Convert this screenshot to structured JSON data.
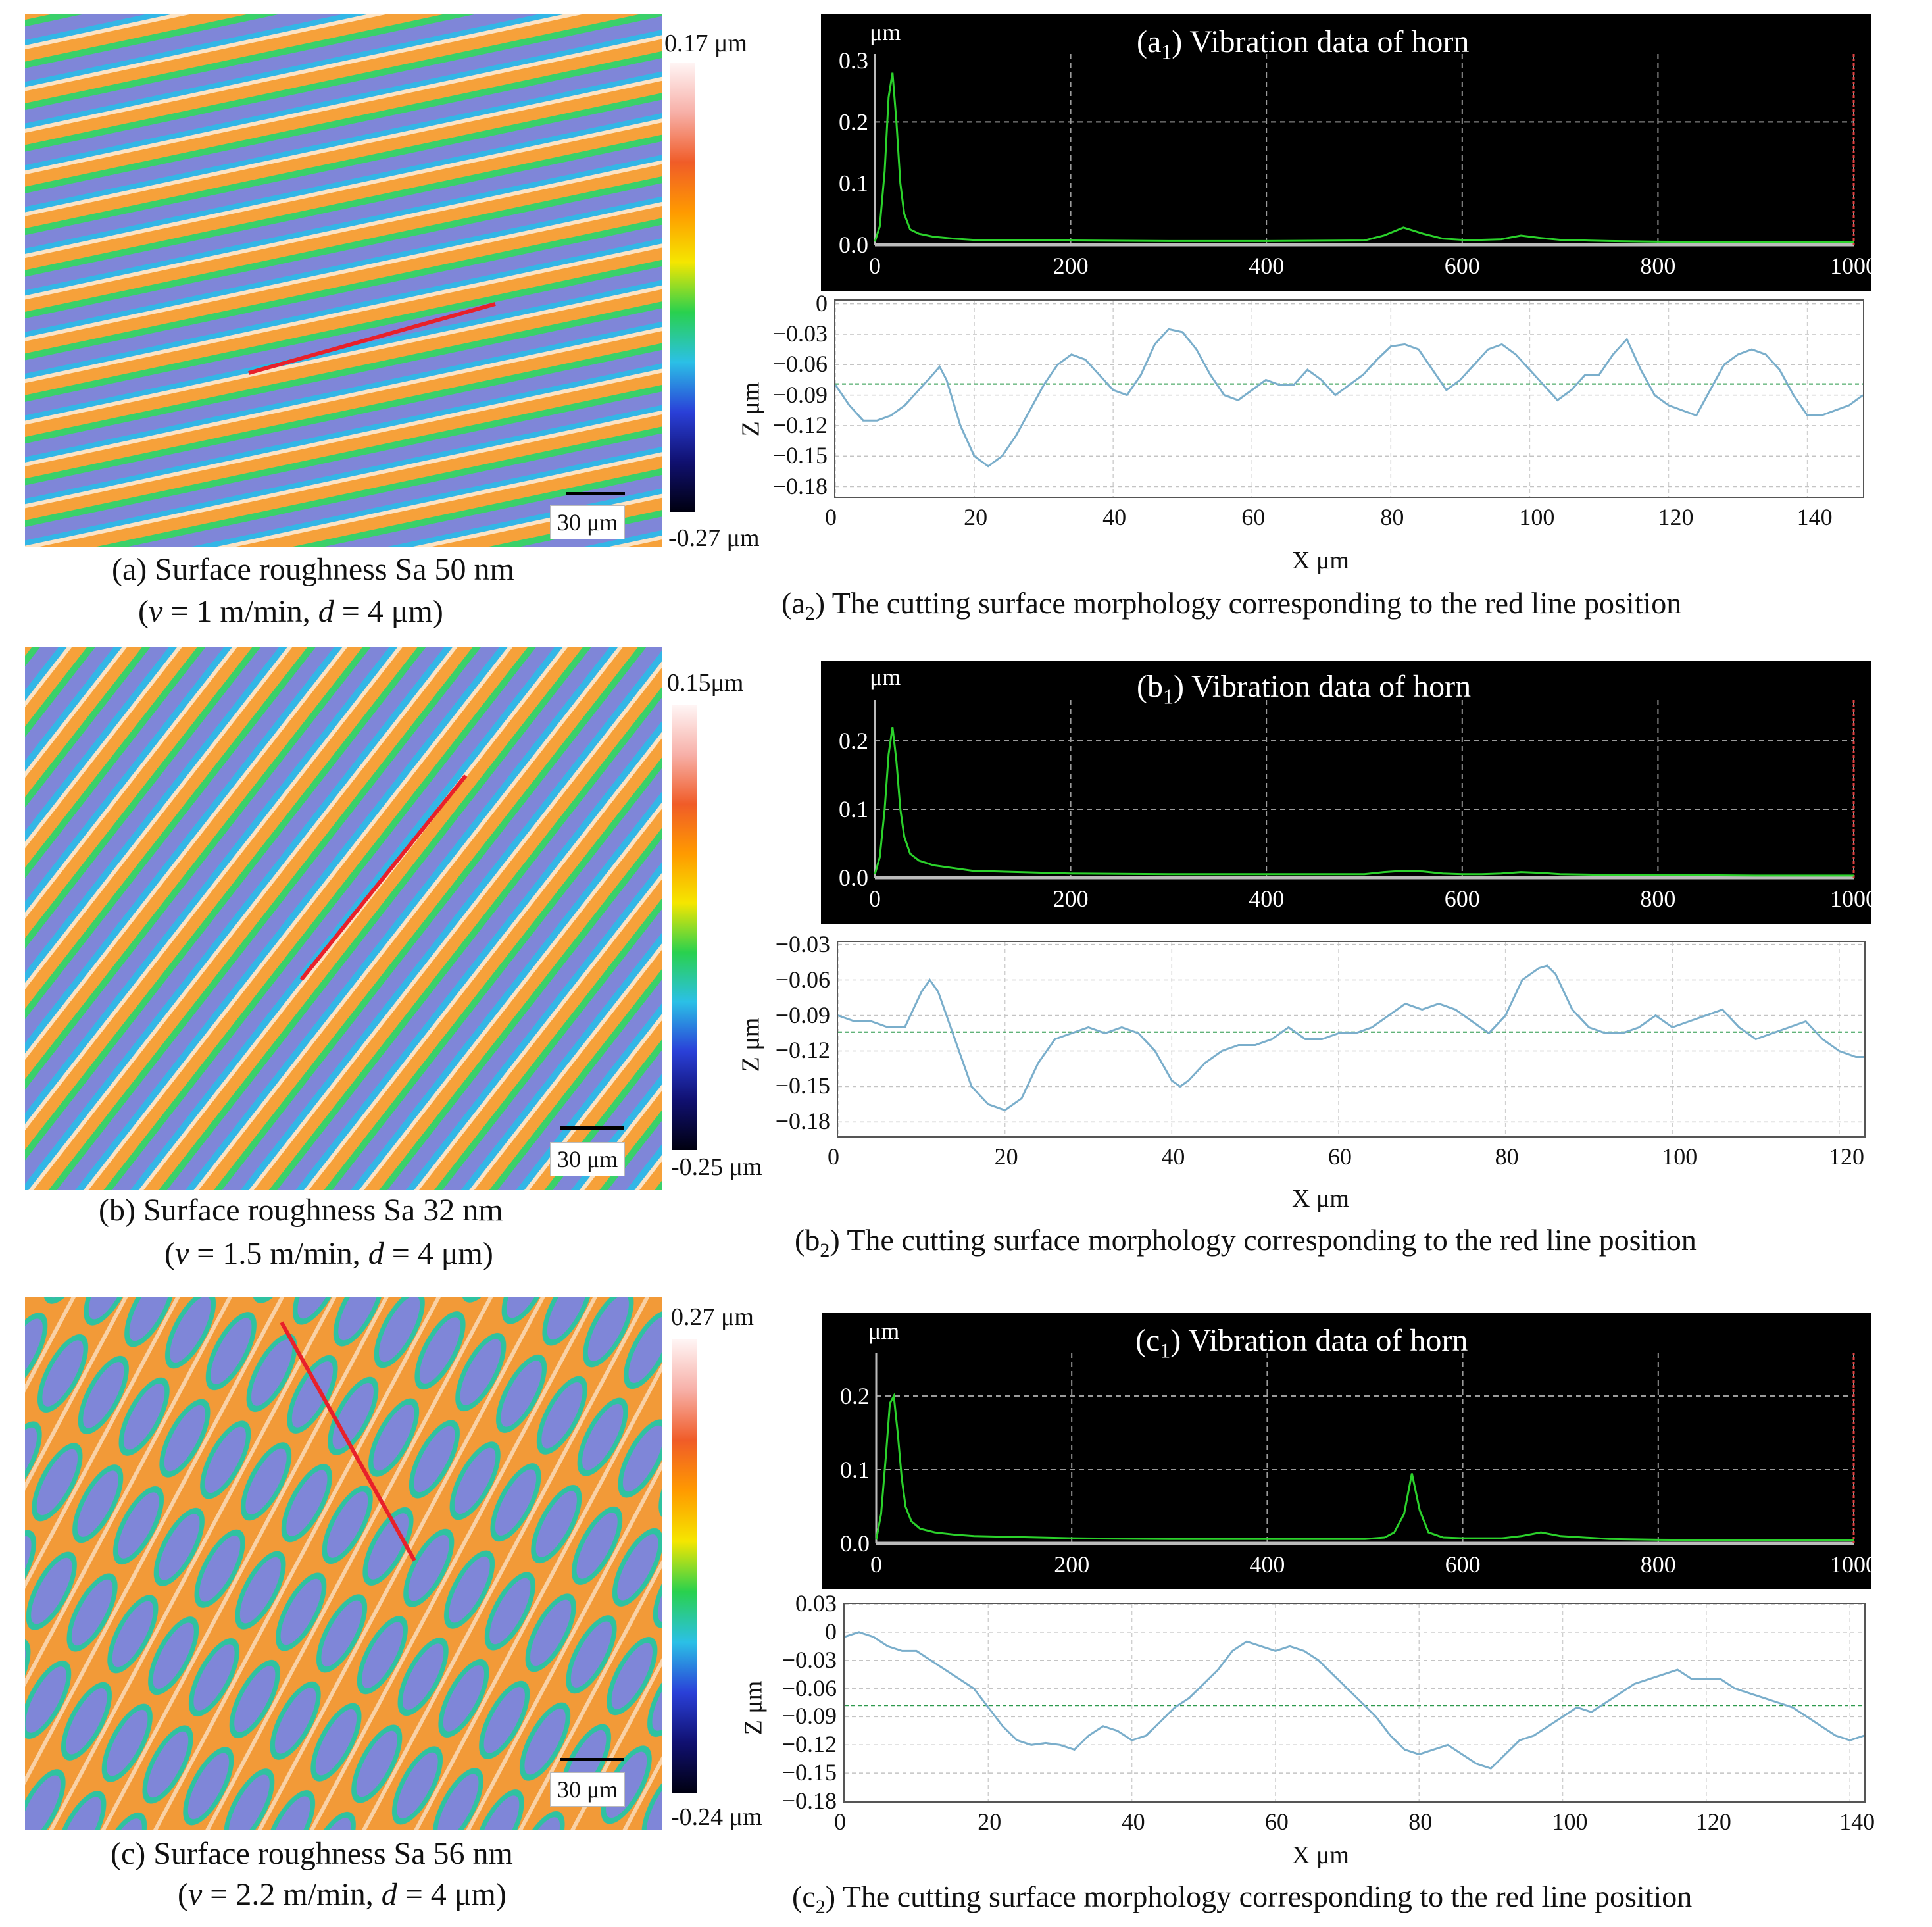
{
  "panels": [
    {
      "id": "a",
      "surface_label": "(a) Surface roughness Sa 50 nm",
      "params": {
        "open": "(",
        "v_sym": "v",
        "v_val": " = 1 m/min, ",
        "d_sym": "d",
        "d_val": " = 4 μm)"
      },
      "colorbar_max": "0.17 μm",
      "colorbar_min": "-0.27 μm",
      "scale_label": "30 μm",
      "vib_title_pre": "(a",
      "vib_title_sub": "1",
      "vib_title_post": ") Vibration data of horn",
      "vib_unit": "μm",
      "prof_caption_pre": "(a",
      "prof_caption_sub": "2",
      "prof_caption_post": ") The cutting surface morphology corresponding to the red line position",
      "prof_xlabel": "X μm",
      "prof_ylabel": "Z μm",
      "colors": {
        "stripe": "#f6a13a",
        "band": "#7f86d8",
        "edge": "#33b6e6"
      }
    },
    {
      "id": "b",
      "surface_label": "(b) Surface roughness Sa 32 nm",
      "params": {
        "open": "(",
        "v_sym": "v",
        "v_val": " = 1.5 m/min, ",
        "d_sym": "d",
        "d_val": " = 4 μm)"
      },
      "colorbar_max": "0.15μm",
      "colorbar_min": "-0.25 μm",
      "scale_label": "30 μm",
      "vib_title_pre": "(b",
      "vib_title_sub": "1",
      "vib_title_post": ") Vibration data of horn",
      "vib_unit": "μm",
      "prof_caption_pre": "(b",
      "prof_caption_sub": "2",
      "prof_caption_post": ") The cutting surface morphology corresponding to the red line position",
      "prof_xlabel": "X μm",
      "prof_ylabel": "Z μm",
      "colors": {
        "stripe": "#f6a13a",
        "band": "#7f86d8",
        "edge": "#33b6e6"
      }
    },
    {
      "id": "c",
      "surface_label": "(c) Surface roughness Sa 56 nm",
      "params": {
        "open": "(",
        "v_sym": "v",
        "v_val": " = 2.2 m/min, ",
        "d_sym": "d",
        "d_val": " = 4 μm)"
      },
      "colorbar_max": "0.27 μm",
      "colorbar_min": "-0.24 μm",
      "scale_label": "30 μm",
      "vib_title_pre": "(c",
      "vib_title_sub": "1",
      "vib_title_post": ") Vibration data of horn",
      "vib_unit": "μm",
      "prof_caption_pre": "(c",
      "prof_caption_sub": "2",
      "prof_caption_post": ") The cutting surface morphology corresponding to the red line position",
      "prof_xlabel": "X μm",
      "prof_ylabel": "Z μm",
      "colors": {
        "stripe": "#f29a38",
        "band": "#7f86d8",
        "edge": "#2fc2a0"
      }
    }
  ],
  "chart_data": [
    {
      "type": "line",
      "title": "(a1) Vibration data of horn",
      "ylabel": "μm",
      "xlim": [
        0,
        1000
      ],
      "ylim": [
        0,
        0.3
      ],
      "xticks": [
        "0",
        "200",
        "400",
        "600",
        "800",
        "1000"
      ],
      "yticks": [
        "0.0",
        "0.1",
        "0.2",
        "0.3"
      ],
      "grid_x": [
        0,
        200,
        400,
        600,
        800,
        1000
      ],
      "grid_y": [
        0.2
      ],
      "series": [
        {
          "name": "vibration",
          "color": "#2bd12b",
          "x": [
            0,
            5,
            10,
            14,
            18,
            22,
            26,
            30,
            36,
            45,
            60,
            80,
            100,
            200,
            300,
            400,
            500,
            520,
            540,
            560,
            580,
            600,
            620,
            640,
            660,
            680,
            700,
            750,
            800,
            900,
            1000
          ],
          "y": [
            0.005,
            0.03,
            0.12,
            0.24,
            0.28,
            0.2,
            0.1,
            0.05,
            0.025,
            0.018,
            0.013,
            0.01,
            0.008,
            0.007,
            0.006,
            0.006,
            0.007,
            0.015,
            0.028,
            0.018,
            0.01,
            0.008,
            0.008,
            0.009,
            0.015,
            0.011,
            0.008,
            0.006,
            0.005,
            0.004,
            0.004
          ]
        }
      ]
    },
    {
      "type": "line",
      "title": "(a2) The cutting surface morphology corresponding to the red line position",
      "xlabel": "X μm",
      "ylabel": "Z μm",
      "xlim": [
        0,
        148
      ],
      "ylim": [
        -0.19,
        0.003
      ],
      "xticks": [
        "0",
        "20",
        "40",
        "60",
        "80",
        "100",
        "120",
        "140"
      ],
      "yticks": [
        "0",
        "−0.03",
        "−0.06",
        "−0.09",
        "−0.12",
        "−0.15",
        "−0.18"
      ],
      "ref_line": -0.079,
      "series": [
        {
          "name": "profile",
          "color": "#7aaecb",
          "x": [
            0,
            2,
            4,
            6,
            8,
            10,
            12,
            14,
            15,
            16,
            18,
            20,
            22,
            24,
            26,
            28,
            30,
            32,
            34,
            36,
            38,
            40,
            42,
            44,
            46,
            48,
            50,
            52,
            54,
            56,
            58,
            60,
            62,
            64,
            66,
            68,
            70,
            72,
            74,
            76,
            78,
            80,
            82,
            84,
            86,
            88,
            90,
            92,
            94,
            96,
            98,
            100,
            102,
            104,
            106,
            108,
            110,
            112,
            114,
            116,
            118,
            120,
            122,
            124,
            126,
            128,
            130,
            132,
            134,
            136,
            138,
            140,
            142,
            144,
            146,
            148
          ],
          "y": [
            -0.08,
            -0.1,
            -0.115,
            -0.115,
            -0.11,
            -0.1,
            -0.085,
            -0.07,
            -0.062,
            -0.075,
            -0.12,
            -0.15,
            -0.16,
            -0.15,
            -0.13,
            -0.105,
            -0.08,
            -0.06,
            -0.05,
            -0.055,
            -0.07,
            -0.085,
            -0.09,
            -0.07,
            -0.04,
            -0.025,
            -0.028,
            -0.045,
            -0.07,
            -0.09,
            -0.095,
            -0.085,
            -0.075,
            -0.08,
            -0.08,
            -0.065,
            -0.075,
            -0.09,
            -0.08,
            -0.07,
            -0.055,
            -0.042,
            -0.04,
            -0.045,
            -0.065,
            -0.085,
            -0.075,
            -0.06,
            -0.045,
            -0.04,
            -0.05,
            -0.065,
            -0.08,
            -0.095,
            -0.085,
            -0.07,
            -0.07,
            -0.05,
            -0.035,
            -0.065,
            -0.09,
            -0.1,
            -0.105,
            -0.11,
            -0.085,
            -0.06,
            -0.05,
            -0.045,
            -0.05,
            -0.065,
            -0.09,
            -0.11,
            -0.11,
            -0.105,
            -0.1,
            -0.09
          ]
        }
      ]
    },
    {
      "type": "line",
      "title": "(b1) Vibration data of horn",
      "ylabel": "μm",
      "xlim": [
        0,
        1000
      ],
      "ylim": [
        0,
        0.25
      ],
      "xticks": [
        "0",
        "200",
        "400",
        "600",
        "800",
        "1000"
      ],
      "yticks": [
        "0.0",
        "0.1",
        "0.2"
      ],
      "grid_x": [
        0,
        200,
        400,
        600,
        800,
        1000
      ],
      "grid_y": [
        0.1,
        0.2
      ],
      "series": [
        {
          "name": "vibration",
          "color": "#2bd12b",
          "x": [
            0,
            5,
            10,
            14,
            18,
            22,
            26,
            30,
            36,
            45,
            60,
            80,
            100,
            200,
            300,
            400,
            500,
            520,
            540,
            560,
            580,
            600,
            620,
            640,
            660,
            680,
            700,
            750,
            800,
            900,
            1000
          ],
          "y": [
            0.005,
            0.03,
            0.1,
            0.18,
            0.22,
            0.17,
            0.1,
            0.06,
            0.035,
            0.025,
            0.018,
            0.014,
            0.01,
            0.006,
            0.005,
            0.005,
            0.005,
            0.008,
            0.01,
            0.009,
            0.006,
            0.005,
            0.005,
            0.006,
            0.008,
            0.007,
            0.005,
            0.004,
            0.004,
            0.003,
            0.003
          ]
        }
      ]
    },
    {
      "type": "line",
      "title": "(b2) The cutting surface morphology corresponding to the red line position",
      "xlabel": "X μm",
      "ylabel": "Z μm",
      "xlim": [
        0,
        123
      ],
      "ylim": [
        -0.192,
        -0.028
      ],
      "xticks": [
        "0",
        "20",
        "40",
        "60",
        "80",
        "100",
        "120"
      ],
      "yticks": [
        "−0.03",
        "−0.06",
        "−0.09",
        "−0.12",
        "−0.15",
        "−0.18"
      ],
      "ref_line": -0.104,
      "series": [
        {
          "name": "profile",
          "color": "#7aaecb",
          "x": [
            0,
            2,
            4,
            6,
            8,
            10,
            11,
            12,
            14,
            16,
            18,
            20,
            22,
            24,
            26,
            28,
            30,
            32,
            34,
            36,
            38,
            40,
            41,
            42,
            44,
            46,
            48,
            50,
            52,
            54,
            56,
            58,
            60,
            62,
            64,
            66,
            68,
            70,
            72,
            74,
            76,
            78,
            80,
            82,
            84,
            85,
            86,
            88,
            90,
            92,
            94,
            96,
            98,
            100,
            102,
            104,
            106,
            108,
            110,
            112,
            114,
            116,
            118,
            120,
            122,
            123
          ],
          "y": [
            -0.09,
            -0.095,
            -0.095,
            -0.1,
            -0.1,
            -0.07,
            -0.06,
            -0.07,
            -0.11,
            -0.15,
            -0.165,
            -0.17,
            -0.16,
            -0.13,
            -0.11,
            -0.105,
            -0.1,
            -0.105,
            -0.1,
            -0.105,
            -0.12,
            -0.145,
            -0.15,
            -0.145,
            -0.13,
            -0.12,
            -0.115,
            -0.115,
            -0.11,
            -0.1,
            -0.11,
            -0.11,
            -0.105,
            -0.105,
            -0.1,
            -0.09,
            -0.08,
            -0.085,
            -0.08,
            -0.085,
            -0.095,
            -0.105,
            -0.09,
            -0.06,
            -0.05,
            -0.048,
            -0.055,
            -0.085,
            -0.1,
            -0.105,
            -0.105,
            -0.1,
            -0.09,
            -0.1,
            -0.095,
            -0.09,
            -0.085,
            -0.1,
            -0.11,
            -0.105,
            -0.1,
            -0.095,
            -0.11,
            -0.12,
            -0.125,
            -0.125
          ]
        }
      ]
    },
    {
      "type": "line",
      "title": "(c1) Vibration data of horn",
      "ylabel": "μm",
      "xlim": [
        0,
        1000
      ],
      "ylim": [
        0,
        0.25
      ],
      "xticks": [
        "0",
        "200",
        "400",
        "600",
        "800",
        "1000"
      ],
      "yticks": [
        "0.0",
        "0.1",
        "0.2"
      ],
      "grid_x": [
        0,
        200,
        400,
        600,
        800,
        1000
      ],
      "grid_y": [
        0.1,
        0.2
      ],
      "series": [
        {
          "name": "vibration",
          "color": "#2bd12b",
          "x": [
            0,
            5,
            10,
            14,
            18,
            22,
            26,
            30,
            36,
            45,
            60,
            80,
            100,
            200,
            300,
            400,
            500,
            520,
            530,
            540,
            548,
            556,
            565,
            580,
            600,
            640,
            660,
            680,
            700,
            750,
            800,
            900,
            1000
          ],
          "y": [
            0.005,
            0.04,
            0.12,
            0.19,
            0.2,
            0.15,
            0.09,
            0.05,
            0.03,
            0.02,
            0.015,
            0.012,
            0.01,
            0.007,
            0.006,
            0.006,
            0.006,
            0.008,
            0.015,
            0.04,
            0.095,
            0.045,
            0.015,
            0.008,
            0.007,
            0.007,
            0.01,
            0.015,
            0.01,
            0.006,
            0.005,
            0.004,
            0.004
          ]
        }
      ]
    },
    {
      "type": "line",
      "title": "(c2) The cutting surface morphology corresponding to the red line position",
      "xlabel": "X μm",
      "ylabel": "Z μm",
      "xlim": [
        0,
        142
      ],
      "ylim": [
        -0.18,
        0.03
      ],
      "xticks": [
        "0",
        "20",
        "40",
        "60",
        "80",
        "100",
        "120",
        "140"
      ],
      "yticks": [
        "0.03",
        "0",
        "−0.03",
        "−0.06",
        "−0.09",
        "−0.12",
        "−0.15",
        "−0.18"
      ],
      "ref_line": -0.078,
      "series": [
        {
          "name": "profile",
          "color": "#7aaecb",
          "x": [
            0,
            2,
            4,
            6,
            8,
            10,
            12,
            14,
            16,
            18,
            20,
            22,
            24,
            26,
            28,
            30,
            32,
            34,
            36,
            38,
            40,
            42,
            44,
            46,
            48,
            50,
            52,
            54,
            56,
            58,
            60,
            62,
            64,
            66,
            68,
            70,
            72,
            74,
            76,
            78,
            80,
            82,
            84,
            86,
            88,
            90,
            92,
            94,
            96,
            98,
            100,
            102,
            104,
            106,
            108,
            110,
            112,
            114,
            116,
            118,
            120,
            122,
            124,
            126,
            128,
            130,
            132,
            134,
            136,
            138,
            140,
            142
          ],
          "y": [
            -0.005,
            0.0,
            -0.005,
            -0.015,
            -0.02,
            -0.02,
            -0.03,
            -0.04,
            -0.05,
            -0.06,
            -0.08,
            -0.1,
            -0.115,
            -0.12,
            -0.118,
            -0.12,
            -0.125,
            -0.11,
            -0.1,
            -0.105,
            -0.115,
            -0.11,
            -0.095,
            -0.08,
            -0.07,
            -0.055,
            -0.04,
            -0.02,
            -0.01,
            -0.015,
            -0.02,
            -0.015,
            -0.02,
            -0.03,
            -0.045,
            -0.06,
            -0.075,
            -0.09,
            -0.11,
            -0.125,
            -0.13,
            -0.125,
            -0.12,
            -0.13,
            -0.14,
            -0.145,
            -0.13,
            -0.115,
            -0.11,
            -0.1,
            -0.09,
            -0.08,
            -0.085,
            -0.075,
            -0.065,
            -0.055,
            -0.05,
            -0.045,
            -0.04,
            -0.05,
            -0.05,
            -0.05,
            -0.06,
            -0.065,
            -0.07,
            -0.075,
            -0.08,
            -0.09,
            -0.1,
            -0.11,
            -0.115,
            -0.11
          ]
        }
      ]
    }
  ]
}
